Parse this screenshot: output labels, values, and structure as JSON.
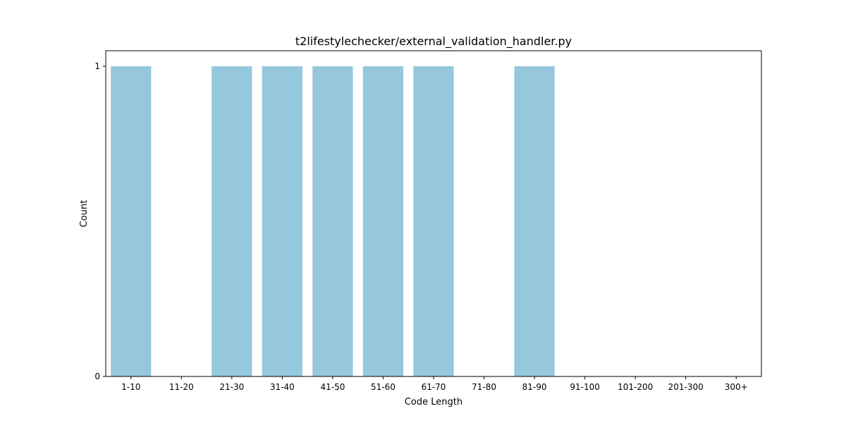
{
  "chart_data": {
    "type": "bar",
    "title": "t2lifestylechecker/external_validation_handler.py",
    "xlabel": "Code Length",
    "ylabel": "Count",
    "categories": [
      "1-10",
      "11-20",
      "21-30",
      "31-40",
      "41-50",
      "51-60",
      "61-70",
      "71-80",
      "81-90",
      "91-100",
      "101-200",
      "201-300",
      "300+"
    ],
    "values": [
      1,
      0,
      1,
      1,
      1,
      1,
      1,
      0,
      1,
      0,
      0,
      0,
      0
    ],
    "yticks": [
      0,
      1
    ],
    "ylim": [
      0,
      1.05
    ],
    "grid": false,
    "legend": "none",
    "bar_color": "#95c8dd"
  }
}
